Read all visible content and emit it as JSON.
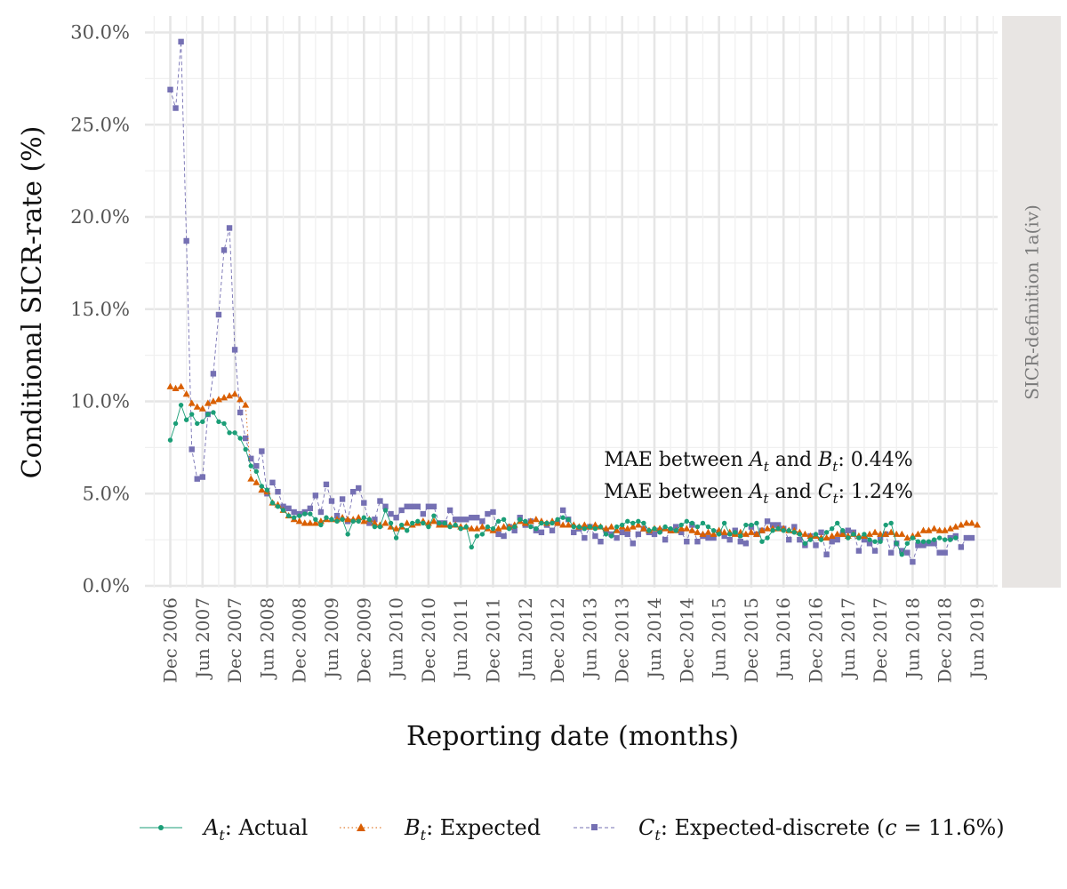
{
  "chart_data": {
    "type": "line",
    "title": "",
    "xlabel": "Reporting date (months)",
    "ylabel": "Conditional SICR-rate (%)",
    "ylim": [
      0,
      30
    ],
    "y_ticks": [
      "0.0%",
      "5.0%",
      "10.0%",
      "15.0%",
      "20.0%",
      "25.0%",
      "30.0%"
    ],
    "x_ticks": [
      "Dec 2006",
      "Jun 2007",
      "Dec 2007",
      "Jun 2008",
      "Dec 2008",
      "Jun 2009",
      "Dec 2009",
      "Jun 2010",
      "Dec 2010",
      "Jun 2011",
      "Dec 2011",
      "Jun 2012",
      "Dec 2012",
      "Jun 2013",
      "Dec 2013",
      "Jun 2014",
      "Dec 2014",
      "Jun 2015",
      "Dec 2015",
      "Jun 2016",
      "Dec 2016",
      "Jun 2017",
      "Dec 2017",
      "Jun 2018",
      "Dec 2018",
      "Jun 2019"
    ],
    "x_start": "2006-12",
    "x_end": "2019-01",
    "grid": true,
    "facet_label": "SICR-definition 1a(iv)",
    "annotations": [
      {
        "prefix": "MAE between ",
        "var1": "A",
        "mid": " and ",
        "var2": "B",
        "sub2": "t",
        "suffix": ": 0.44%"
      },
      {
        "prefix": "MAE between ",
        "var1": "A",
        "mid": " and ",
        "var2": "C",
        "sub2": "t",
        "suffix": ": 1.24%"
      }
    ],
    "legend_position": "bottom",
    "series": [
      {
        "name": "Actual",
        "legend_var": "A",
        "legend_sub": "t",
        "legend_label": ": Actual",
        "color": "#1b9e77",
        "marker": "circle",
        "line": "solid",
        "values": [
          7.9,
          8.8,
          9.8,
          9.0,
          9.3,
          8.8,
          8.9,
          9.3,
          9.4,
          8.9,
          8.8,
          8.3,
          8.3,
          8.0,
          7.4,
          6.5,
          6.2,
          5.4,
          5.2,
          4.5,
          4.3,
          4.1,
          3.8,
          3.7,
          3.8,
          3.9,
          3.9,
          3.6,
          3.3,
          3.7,
          3.6,
          3.5,
          3.6,
          2.8,
          3.5,
          3.5,
          3.7,
          3.6,
          3.2,
          3.2,
          4.1,
          3.4,
          2.6,
          3.3,
          3.0,
          3.4,
          3.5,
          3.4,
          3.2,
          3.8,
          3.4,
          3.4,
          3.2,
          3.3,
          3.1,
          3.2,
          2.1,
          2.7,
          2.8,
          3.2,
          3.1,
          3.5,
          3.6,
          3.1,
          3.2,
          3.6,
          3.5,
          3.2,
          3.1,
          3.4,
          3.4,
          3.4,
          3.6,
          3.7,
          3.6,
          3.2,
          3.2,
          3.1,
          3.2,
          3.1,
          3.2,
          2.8,
          2.7,
          3.2,
          3.3,
          3.5,
          3.4,
          3.5,
          3.4,
          3.0,
          3.1,
          2.9,
          3.2,
          3.1,
          3.0,
          3.3,
          3.5,
          3.4,
          3.2,
          3.4,
          3.2,
          3.0,
          2.8,
          3.4,
          2.8,
          2.9,
          2.7,
          3.3,
          3.3,
          3.4,
          2.4,
          2.6,
          3.0,
          3.1,
          3.0,
          3.0,
          2.9,
          2.8,
          2.3,
          2.5,
          2.8,
          2.5,
          2.9,
          3.1,
          3.4,
          3.0,
          2.6,
          2.8,
          2.6,
          2.8,
          2.5,
          2.4,
          2.4,
          3.3,
          3.4,
          2.3,
          1.7,
          2.3,
          2.6,
          2.4,
          2.4,
          2.4,
          2.5,
          2.6,
          2.5,
          2.5,
          2.6
        ]
      },
      {
        "name": "Expected",
        "legend_var": "B",
        "legend_sub": "t",
        "legend_label": ": Expected",
        "color": "#d95f02",
        "marker": "triangle",
        "line": "dotted",
        "values": [
          10.8,
          10.7,
          10.8,
          10.4,
          9.9,
          9.7,
          9.6,
          9.9,
          10.0,
          10.1,
          10.2,
          10.3,
          10.4,
          10.1,
          9.8,
          5.8,
          5.6,
          5.2,
          5.1,
          4.5,
          4.4,
          4.1,
          3.8,
          3.6,
          3.5,
          3.4,
          3.4,
          3.4,
          3.5,
          3.6,
          3.6,
          3.6,
          3.7,
          3.6,
          3.6,
          3.7,
          3.5,
          3.6,
          3.4,
          3.3,
          3.4,
          3.2,
          3.1,
          3.2,
          3.4,
          3.3,
          3.4,
          3.5,
          3.4,
          3.5,
          3.3,
          3.3,
          3.3,
          3.3,
          3.2,
          3.2,
          3.1,
          3.1,
          3.2,
          3.1,
          3.0,
          3.1,
          3.2,
          3.2,
          3.3,
          3.5,
          3.4,
          3.5,
          3.6,
          3.5,
          3.4,
          3.5,
          3.4,
          3.3,
          3.3,
          3.3,
          3.2,
          3.3,
          3.2,
          3.3,
          3.2,
          3.1,
          3.2,
          3.0,
          3.2,
          3.1,
          3.2,
          3.3,
          3.1,
          3.0,
          3.1,
          3.1,
          3.1,
          3.0,
          3.0,
          3.1,
          3.1,
          3.0,
          2.9,
          2.8,
          2.9,
          2.8,
          3.0,
          2.9,
          2.9,
          2.8,
          2.9,
          2.8,
          2.9,
          2.8,
          3.0,
          3.1,
          3.1,
          3.1,
          3.1,
          3.0,
          3.0,
          2.9,
          2.8,
          2.7,
          2.7,
          2.6,
          2.6,
          2.7,
          2.8,
          2.8,
          2.7,
          2.8,
          2.7,
          2.7,
          2.8,
          2.9,
          2.8,
          2.8,
          2.9,
          2.8,
          2.8,
          2.6,
          2.7,
          2.8,
          3.0,
          3.0,
          3.1,
          3.0,
          3.0,
          3.1,
          3.2,
          3.3,
          3.4,
          3.4,
          3.3
        ]
      },
      {
        "name": "Expected-discrete",
        "legend_var": "C",
        "legend_sub": "t",
        "legend_label": ": Expected-discrete (",
        "legend_c": "c",
        "legend_c_value": " = 11.6%)",
        "color": "#7570b3",
        "marker": "square",
        "line": "dashed",
        "values": [
          26.9,
          25.9,
          29.5,
          18.7,
          7.4,
          5.8,
          5.9,
          9.3,
          11.5,
          14.7,
          18.2,
          19.4,
          12.8,
          9.4,
          8.0,
          6.9,
          6.5,
          7.3,
          5.0,
          5.6,
          5.1,
          4.3,
          4.2,
          4.0,
          3.9,
          4.0,
          4.2,
          4.9,
          4.0,
          5.5,
          4.6,
          3.8,
          4.7,
          3.5,
          5.1,
          5.3,
          4.5,
          3.4,
          3.6,
          4.6,
          4.3,
          3.9,
          3.7,
          4.1,
          4.3,
          4.3,
          4.3,
          3.9,
          4.3,
          4.3,
          3.4,
          3.4,
          4.1,
          3.6,
          3.6,
          3.6,
          3.7,
          3.7,
          3.5,
          3.9,
          4.0,
          2.8,
          2.7,
          3.2,
          3.0,
          3.7,
          3.3,
          3.5,
          3.0,
          2.9,
          3.3,
          3.0,
          3.4,
          4.1,
          3.6,
          2.9,
          3.1,
          2.6,
          3.2,
          2.7,
          2.4,
          3.0,
          2.8,
          2.6,
          2.9,
          2.8,
          2.3,
          2.8,
          3.1,
          2.9,
          2.8,
          3.0,
          2.5,
          3.0,
          3.2,
          2.9,
          2.4,
          3.3,
          2.4,
          2.7,
          2.6,
          2.6,
          2.9,
          2.7,
          2.5,
          3.0,
          2.4,
          2.3,
          3.2,
          2.8,
          3.0,
          3.5,
          3.3,
          3.3,
          3.1,
          2.5,
          3.2,
          2.5,
          2.2,
          2.7,
          2.2,
          2.9,
          1.7,
          2.4,
          2.5,
          2.8,
          3.0,
          2.9,
          1.9,
          2.5,
          2.3,
          1.9,
          2.6,
          2.8,
          1.8,
          2.3,
          1.9,
          1.8,
          1.3,
          2.2,
          2.2,
          2.3,
          2.3,
          1.8,
          1.8,
          2.6,
          2.7,
          2.1,
          2.6,
          2.6
        ]
      }
    ]
  }
}
